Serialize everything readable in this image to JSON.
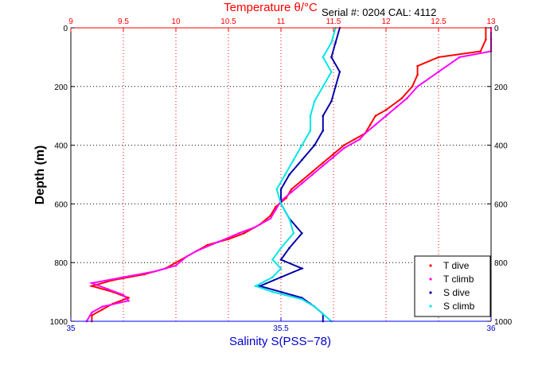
{
  "chart_data": {
    "type": "scatter",
    "title": "Temperature θ/°C",
    "annotation": "Serial #: 0204  CAL: 4112",
    "ylabel": "Depth (m)",
    "xlabel": "Salinity S(PSS−78)",
    "y_reversed": true,
    "ylim": [
      0,
      1000
    ],
    "y_ticks": [
      0,
      200,
      400,
      600,
      800,
      1000
    ],
    "temperature_axis": {
      "position": "top",
      "range": [
        9,
        13
      ],
      "ticks": [
        9,
        9.5,
        10,
        10.5,
        11,
        11.5,
        12,
        12.5,
        13
      ],
      "tick_labels": [
        "9",
        "9.5",
        "10",
        "10.5",
        "11",
        "11.5",
        "12",
        "12.5",
        "13"
      ]
    },
    "salinity_axis": {
      "position": "bottom",
      "range": [
        35,
        36
      ],
      "ticks": [
        35,
        35.5,
        36
      ],
      "tick_labels": [
        "35",
        "35.5",
        "36"
      ]
    },
    "grid": true,
    "legend_position": "bottom-right",
    "colors": {
      "temperature_axis": "#ff0000",
      "salinity_axis": "#0000ff",
      "grid": "#000000",
      "text": "#000000"
    },
    "series": [
      {
        "name": "T dive",
        "axis": "temperature",
        "color": "#ff0000",
        "points": [
          [
            12.95,
            0
          ],
          [
            12.95,
            40
          ],
          [
            12.9,
            80
          ],
          [
            12.5,
            100
          ],
          [
            12.3,
            130
          ],
          [
            12.3,
            160
          ],
          [
            12.25,
            200
          ],
          [
            12.15,
            240
          ],
          [
            12.0,
            280
          ],
          [
            11.9,
            300
          ],
          [
            11.85,
            330
          ],
          [
            11.8,
            360
          ],
          [
            11.7,
            380
          ],
          [
            11.6,
            400
          ],
          [
            11.5,
            430
          ],
          [
            11.4,
            460
          ],
          [
            11.3,
            490
          ],
          [
            11.2,
            520
          ],
          [
            11.1,
            550
          ],
          [
            11.05,
            580
          ],
          [
            10.95,
            610
          ],
          [
            10.9,
            640
          ],
          [
            10.8,
            670
          ],
          [
            10.65,
            700
          ],
          [
            10.5,
            720
          ],
          [
            10.3,
            740
          ],
          [
            10.2,
            760
          ],
          [
            10.1,
            780
          ],
          [
            10.0,
            800
          ],
          [
            9.9,
            820
          ],
          [
            9.7,
            840
          ],
          [
            9.4,
            860
          ],
          [
            9.2,
            880
          ],
          [
            9.4,
            900
          ],
          [
            9.55,
            920
          ],
          [
            9.4,
            940
          ],
          [
            9.3,
            960
          ],
          [
            9.2,
            980
          ],
          [
            9.2,
            1000
          ]
        ]
      },
      {
        "name": "T climb",
        "axis": "temperature",
        "color": "#ff00ff",
        "points": [
          [
            13.0,
            0
          ],
          [
            13.0,
            40
          ],
          [
            13.0,
            80
          ],
          [
            12.7,
            100
          ],
          [
            12.5,
            150
          ],
          [
            12.3,
            200
          ],
          [
            12.2,
            240
          ],
          [
            12.1,
            270
          ],
          [
            12.0,
            300
          ],
          [
            11.9,
            330
          ],
          [
            11.8,
            360
          ],
          [
            11.75,
            380
          ],
          [
            11.6,
            410
          ],
          [
            11.5,
            440
          ],
          [
            11.4,
            470
          ],
          [
            11.3,
            500
          ],
          [
            11.2,
            530
          ],
          [
            11.1,
            560
          ],
          [
            11.0,
            590
          ],
          [
            10.95,
            620
          ],
          [
            10.9,
            650
          ],
          [
            10.75,
            680
          ],
          [
            10.6,
            700
          ],
          [
            10.4,
            730
          ],
          [
            10.2,
            760
          ],
          [
            10.1,
            780
          ],
          [
            10.0,
            810
          ],
          [
            9.8,
            830
          ],
          [
            9.5,
            850
          ],
          [
            9.2,
            870
          ],
          [
            9.35,
            890
          ],
          [
            9.5,
            910
          ],
          [
            9.55,
            930
          ],
          [
            9.3,
            950
          ],
          [
            9.2,
            970
          ],
          [
            9.15,
            1000
          ]
        ]
      },
      {
        "name": "S dive",
        "axis": "salinity",
        "color": "#0000aa",
        "points": [
          [
            35.64,
            0
          ],
          [
            35.63,
            50
          ],
          [
            35.62,
            100
          ],
          [
            35.64,
            150
          ],
          [
            35.63,
            200
          ],
          [
            35.62,
            250
          ],
          [
            35.6,
            300
          ],
          [
            35.6,
            350
          ],
          [
            35.58,
            400
          ],
          [
            35.55,
            450
          ],
          [
            35.52,
            500
          ],
          [
            35.5,
            550
          ],
          [
            35.5,
            600
          ],
          [
            35.52,
            650
          ],
          [
            35.55,
            700
          ],
          [
            35.52,
            750
          ],
          [
            35.5,
            790
          ],
          [
            35.55,
            820
          ],
          [
            35.5,
            850
          ],
          [
            35.45,
            880
          ],
          [
            35.5,
            900
          ],
          [
            35.55,
            920
          ],
          [
            35.58,
            950
          ],
          [
            35.6,
            975
          ],
          [
            35.6,
            1000
          ]
        ]
      },
      {
        "name": "S climb",
        "axis": "salinity",
        "color": "#00e6e6",
        "points": [
          [
            35.63,
            0
          ],
          [
            35.62,
            50
          ],
          [
            35.6,
            100
          ],
          [
            35.62,
            150
          ],
          [
            35.6,
            200
          ],
          [
            35.58,
            250
          ],
          [
            35.57,
            300
          ],
          [
            35.57,
            350
          ],
          [
            35.55,
            400
          ],
          [
            35.53,
            450
          ],
          [
            35.51,
            500
          ],
          [
            35.49,
            550
          ],
          [
            35.5,
            600
          ],
          [
            35.52,
            650
          ],
          [
            35.53,
            700
          ],
          [
            35.5,
            750
          ],
          [
            35.48,
            790
          ],
          [
            35.5,
            820
          ],
          [
            35.48,
            850
          ],
          [
            35.44,
            880
          ],
          [
            35.48,
            900
          ],
          [
            35.55,
            925
          ],
          [
            35.58,
            950
          ],
          [
            35.6,
            975
          ],
          [
            35.62,
            1000
          ]
        ]
      }
    ]
  }
}
